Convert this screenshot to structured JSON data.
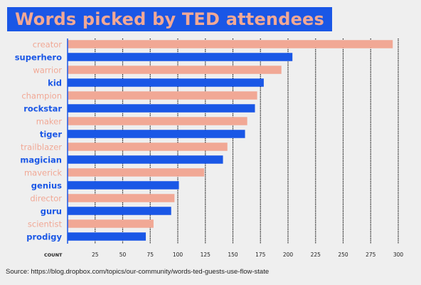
{
  "colors": {
    "blue": "#1a57e6",
    "salmon": "#f1a895",
    "background": "#efefef",
    "grid": "#222222"
  },
  "chart_data": {
    "type": "bar",
    "orientation": "horizontal",
    "title": "Words picked by TED attendees",
    "xlabel": "COUNT",
    "xlim": [
      0,
      300
    ],
    "xticks": [
      25,
      50,
      75,
      100,
      125,
      150,
      175,
      200,
      225,
      250,
      275,
      300
    ],
    "grid": true,
    "categories": [
      "creator",
      "superhero",
      "warrior",
      "kid",
      "champion",
      "rockstar",
      "maker",
      "tiger",
      "trailblazer",
      "magician",
      "maverick",
      "genius",
      "director",
      "guru",
      "scientist",
      "prodigy"
    ],
    "values": [
      295,
      204,
      194,
      178,
      172,
      170,
      163,
      161,
      145,
      141,
      124,
      101,
      97,
      94,
      78,
      71
    ],
    "bar_colors": [
      "salmon",
      "blue",
      "salmon",
      "blue",
      "salmon",
      "blue",
      "salmon",
      "blue",
      "salmon",
      "blue",
      "salmon",
      "blue",
      "salmon",
      "blue",
      "salmon",
      "blue"
    ]
  },
  "source": "Source: https://blog.dropbox.com/topics/our-community/words-ted-guests-use-flow-state"
}
